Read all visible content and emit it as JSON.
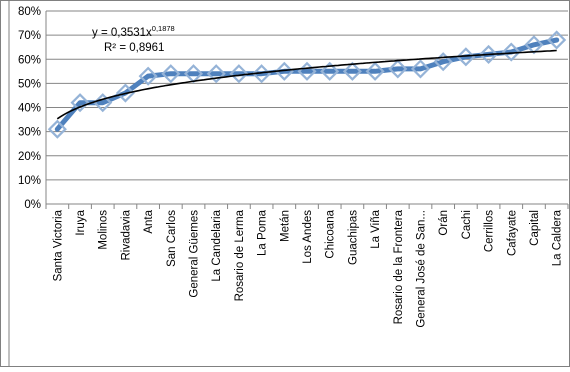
{
  "chart_data": {
    "type": "line",
    "categories": [
      "Santa Victoria",
      "Iruya",
      "Molinos",
      "Rivadavia",
      "Anta",
      "San Carlos",
      "General Güemes",
      "La Candelaria",
      "Rosario de Lerma",
      "La Poma",
      "Metán",
      "Los Andes",
      "Chicoana",
      "Guachipas",
      "La Viña",
      "Rosario de la Frontera",
      "General José de San...",
      "Orán",
      "Cachi",
      "Cerrillos",
      "Cafayate",
      "Capital",
      "La Caldera"
    ],
    "series": [
      {
        "values": [
          0.31,
          0.42,
          0.42,
          0.46,
          0.53,
          0.54,
          0.54,
          0.54,
          0.54,
          0.54,
          0.55,
          0.55,
          0.55,
          0.55,
          0.55,
          0.56,
          0.56,
          0.59,
          0.61,
          0.62,
          0.63,
          0.66,
          0.68
        ],
        "color": "#4f81bd",
        "marker": "diamond"
      }
    ],
    "trendline": {
      "kind": "power",
      "coefficient": 0.3531,
      "exponent": 0.1878,
      "color": "#000000",
      "equation_prefix": "y = 0,3531x",
      "equation_exponent": "0,1878",
      "r2_label": "R² = 0,8961"
    },
    "y_ticks": [
      "0%",
      "10%",
      "20%",
      "30%",
      "40%",
      "50%",
      "60%",
      "70%",
      "80%"
    ],
    "ylim": [
      0,
      0.8
    ],
    "grid": true,
    "legend": "none"
  }
}
